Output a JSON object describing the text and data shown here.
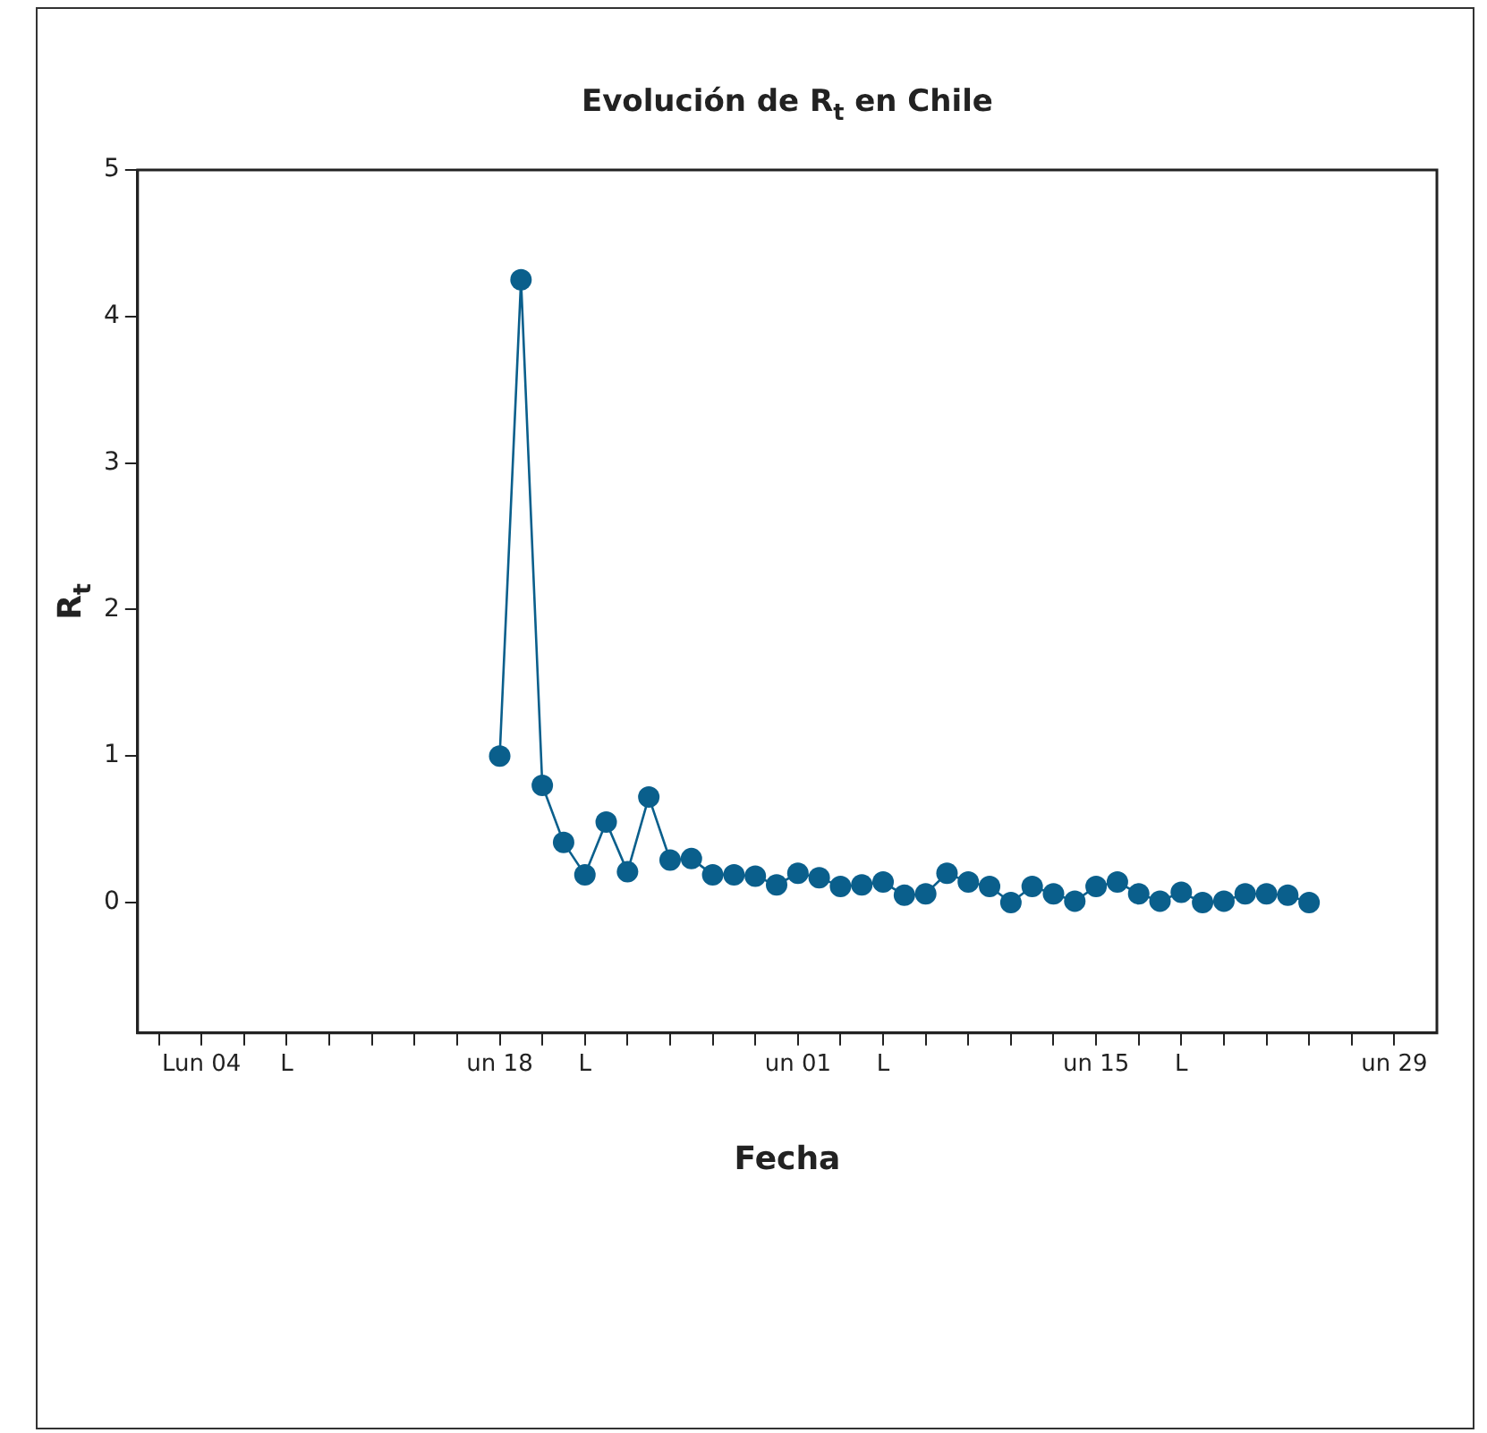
{
  "chart_data": {
    "type": "line",
    "title": "Evolución de R$_{t}$ en Chile",
    "xlabel": "Fecha",
    "ylabel": "R$_{t}$",
    "x": [
      "--05-18",
      "--05-19",
      "--05-20",
      "--05-21",
      "--05-22",
      "--05-23",
      "--05-24",
      "--05-25",
      "--05-26",
      "--05-27",
      "--05-28",
      "--05-29",
      "--05-30",
      "--05-31",
      "--06-01",
      "--06-02",
      "--06-03",
      "--06-04",
      "--06-05",
      "--06-06",
      "--06-07",
      "--06-08",
      "--06-09",
      "--06-10",
      "--06-11",
      "--06-12",
      "--06-13",
      "--06-14",
      "--06-15",
      "--06-16",
      "--06-17",
      "--06-18",
      "--06-19",
      "--06-20",
      "--06-21",
      "--06-22",
      "--06-23",
      "--06-24",
      "--06-25"
    ],
    "series": [
      {
        "color": "#0a5f8c",
        "values": [
          1.0,
          4.25,
          0.8,
          0.41,
          0.19,
          0.55,
          0.21,
          0.72,
          0.29,
          0.3,
          0.19,
          0.19,
          0.18,
          0.12,
          0.2,
          0.17,
          0.11,
          0.12,
          0.14,
          0.05,
          0.06,
          0.2,
          0.14,
          0.11,
          0.0,
          0.11,
          0.06,
          0.01,
          0.11,
          0.14,
          0.06,
          0.01,
          0.07,
          0.0,
          0.01,
          0.06,
          0.06,
          0.05,
          0.0
        ]
      }
    ],
    "xlim": [
      "--05-01",
      "--07-01"
    ],
    "xticks": [
      {
        "value": "--05-02",
        "label": null
      },
      {
        "value": "--05-04",
        "label": "Lun 04"
      },
      {
        "value": "--05-06",
        "label": null
      },
      {
        "value": "--05-08",
        "label": "L"
      },
      {
        "value": "--05-10",
        "label": null
      },
      {
        "value": "--05-12",
        "label": null
      },
      {
        "value": "--05-14",
        "label": null
      },
      {
        "value": "--05-16",
        "label": null
      },
      {
        "value": "--05-18",
        "label": "un 18"
      },
      {
        "value": "--05-20",
        "label": null
      },
      {
        "value": "--05-22",
        "label": "L"
      },
      {
        "value": "--05-24",
        "label": null
      },
      {
        "value": "--05-26",
        "label": null
      },
      {
        "value": "--05-28",
        "label": null
      },
      {
        "value": "--05-30",
        "label": null
      },
      {
        "value": "--06-01",
        "label": "un 01"
      },
      {
        "value": "--06-03",
        "label": null
      },
      {
        "value": "--06-05",
        "label": "L"
      },
      {
        "value": "--06-07",
        "label": null
      },
      {
        "value": "--06-09",
        "label": null
      },
      {
        "value": "--06-11",
        "label": null
      },
      {
        "value": "--06-13",
        "label": null
      },
      {
        "value": "--06-15",
        "label": "un 15"
      },
      {
        "value": "--06-17",
        "label": null
      },
      {
        "value": "--06-19",
        "label": "L"
      },
      {
        "value": "--06-21",
        "label": null
      },
      {
        "value": "--06-23",
        "label": null
      },
      {
        "value": "--06-25",
        "label": null
      },
      {
        "value": "--06-27",
        "label": null
      },
      {
        "value": "--06-29",
        "label": "un 29"
      }
    ],
    "ylim": [
      -0.89,
      5
    ],
    "yticks": [
      0,
      1,
      2,
      3,
      4,
      5
    ],
    "grid": false,
    "legend": false,
    "marker": "circle",
    "line_style": "solid"
  }
}
